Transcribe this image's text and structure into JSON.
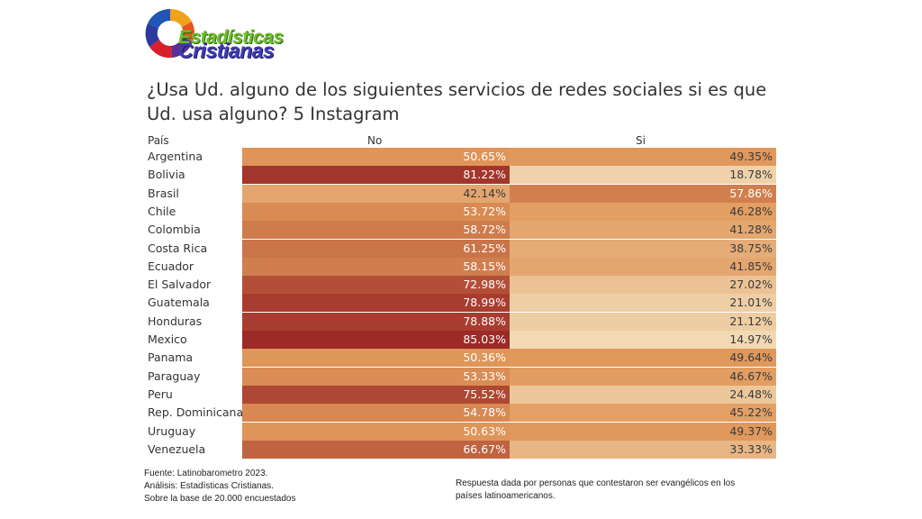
{
  "logo": {
    "line1": "Estadísticas",
    "line2": "Cristianas"
  },
  "title": "¿Usa Ud. alguno de los siguientes servicios de redes sociales si es que Ud. usa alguno? 5  Instagram",
  "chart_data": {
    "type": "table",
    "title": "¿Usa Ud. alguno de los siguientes servicios de redes sociales si es que Ud. usa alguno? 5  Instagram",
    "row_header": "País",
    "columns": [
      "No",
      "Si"
    ],
    "categories": [
      "Argentina",
      "Bolivia",
      "Brasil",
      "Chile",
      "Colombia",
      "Costa Rica",
      "Ecuador",
      "El Salvador",
      "Guatemala",
      "Honduras",
      "Mexico",
      "Panama",
      "Paraguay",
      "Peru",
      "Rep. Dominicana",
      "Uruguay",
      "Venezuela"
    ],
    "series": [
      {
        "name": "No",
        "values": [
          50.65,
          81.22,
          42.14,
          53.72,
          58.72,
          61.25,
          58.15,
          72.98,
          78.99,
          78.88,
          85.03,
          50.36,
          53.33,
          75.52,
          54.78,
          50.63,
          66.67
        ]
      },
      {
        "name": "Si",
        "values": [
          49.35,
          18.78,
          57.86,
          46.28,
          41.28,
          38.75,
          41.85,
          27.02,
          21.01,
          21.12,
          14.97,
          49.64,
          46.67,
          24.48,
          45.22,
          49.37,
          33.33
        ]
      }
    ],
    "color_scale": {
      "low": "#f1d9b3",
      "mid": "#e0975a",
      "high": "#9c2a26"
    }
  },
  "footer": {
    "left": [
      "Fuente: Latinobarometro 2023.",
      "Análisis: Estadísticas Cristianas.",
      "Sobre la base de 20.000 encuestados"
    ],
    "right": [
      "Respuesta dada por personas que contestaron ser evangélicos en los",
      "países latinoamericanos."
    ]
  }
}
